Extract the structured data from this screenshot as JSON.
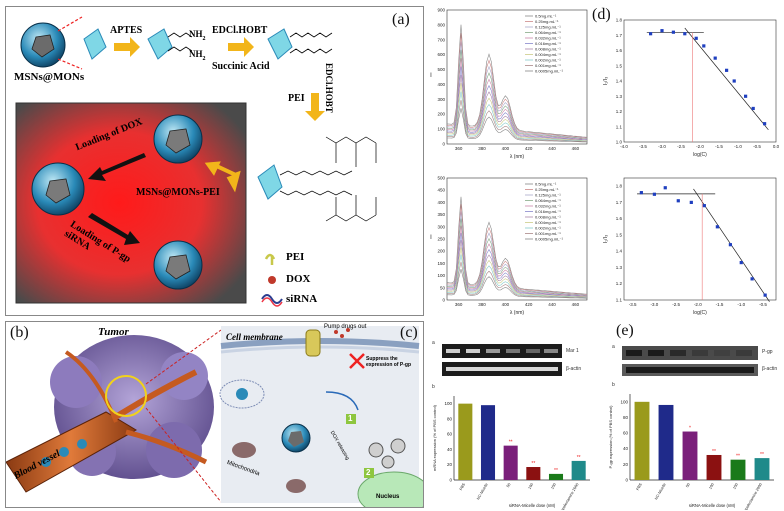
{
  "panel_a": {
    "label": "(a)",
    "start_label": "MSNs@MONs",
    "step1": "APTES",
    "step2_top": "EDCl.HOBT",
    "step2_bottom": "Succinic Acid",
    "vertical_reagent": "EDCl.HOBT",
    "pei_step": "PEI",
    "nh2": "NH",
    "nh2_sub": "2",
    "loading_dox": "Loading of DOX",
    "loading_sirna": "Loading of P-gp siRNA",
    "product_label": "MSNs@MONs-PEI",
    "legend": [
      {
        "name": "PEI",
        "color": "#c8c84a"
      },
      {
        "name": "DOX",
        "color": "#c0392b"
      },
      {
        "name": "siRNA",
        "color": "#2c3e90"
      }
    ]
  },
  "panel_b": {
    "label": "(b)",
    "tumor": "Tumor",
    "vessel": "Blood vessel"
  },
  "panel_c": {
    "label": "(c)",
    "membrane": "Cell membrane",
    "pump": "Pump drugs out",
    "suppress": "Suppress the expression of P-gp",
    "mito": "Mitochondria",
    "dox_release": "DOX releasing",
    "nucleus": "Nucleus",
    "step1": "1",
    "step2": "2"
  },
  "panel_d": {
    "label": "(d)",
    "spectra": [
      {
        "ylabel": "I",
        "xlabel": "λ (nm)",
        "xticks": [
          "360",
          "380",
          "400",
          "420",
          "440",
          "460"
        ],
        "yticks": [
          "0",
          "100",
          "200",
          "300",
          "400",
          "500",
          "600",
          "700",
          "800",
          "900"
        ],
        "legend": [
          "0.5mg.mL⁻¹",
          "0.25mg.mL⁻¹",
          "0.125mg.mL⁻¹",
          "0.064mg.mL⁻¹",
          "0.032mg.mL⁻¹",
          "0.016mg.mL⁻¹",
          "0.008mg.mL⁻¹",
          "0.004mg.mL⁻¹",
          "0.002mg.mL⁻¹",
          "0.001mg.mL⁻¹",
          "0.0005mg.mL⁻¹"
        ]
      },
      {
        "ylabel": "I",
        "xlabel": "λ (nm)",
        "xticks": [
          "360",
          "380",
          "400",
          "420",
          "440",
          "460"
        ],
        "yticks": [
          "0",
          "50",
          "100",
          "150",
          "200",
          "250",
          "300",
          "350",
          "400",
          "450",
          "500"
        ],
        "legend": [
          "0.5mg.mL⁻¹",
          "0.25mg.mL⁻¹",
          "0.125mg.mL⁻¹",
          "0.064mg.mL⁻¹",
          "0.032mg.mL⁻¹",
          "0.016mg.mL⁻¹",
          "0.008mg.mL⁻¹",
          "0.004mg.mL⁻¹",
          "0.002mg.mL⁻¹",
          "0.001mg.mL⁻¹",
          "0.0005mg.mL⁻¹"
        ]
      }
    ],
    "ratio_plots": [
      {
        "ylabel": "I₁/I₃",
        "xlabel": "log(C)",
        "xticks": [
          "-4.0",
          "-3.5",
          "-3.0",
          "-2.5",
          "-2.0",
          "-1.5",
          "-1.0",
          "-0.5",
          "0.0"
        ],
        "yticks": [
          "1.0",
          "1.1",
          "1.2",
          "1.3",
          "1.4",
          "1.5",
          "1.6",
          "1.7",
          "1.8"
        ],
        "points": [
          [
            -3.3,
            1.71
          ],
          [
            -3.0,
            1.73
          ],
          [
            -2.7,
            1.72
          ],
          [
            -2.4,
            1.71
          ],
          [
            -2.1,
            1.68
          ],
          [
            -1.9,
            1.63
          ],
          [
            -1.6,
            1.55
          ],
          [
            -1.3,
            1.47
          ],
          [
            -1.1,
            1.4
          ],
          [
            -0.8,
            1.3
          ],
          [
            -0.6,
            1.22
          ],
          [
            -0.3,
            1.12
          ]
        ]
      },
      {
        "ylabel": "I₁/I₃",
        "xlabel": "log(C)",
        "xticks": [
          "-3.5",
          "-3.0",
          "-2.5",
          "-2.0",
          "-1.5",
          "-1.0",
          "-0.5"
        ],
        "yticks": [
          "1.1",
          "1.2",
          "1.3",
          "1.4",
          "1.5",
          "1.6",
          "1.7",
          "1.8"
        ],
        "points": [
          [
            -3.3,
            1.76
          ],
          [
            -3.0,
            1.75
          ],
          [
            -2.75,
            1.79
          ],
          [
            -2.45,
            1.71
          ],
          [
            -2.15,
            1.7
          ],
          [
            -1.85,
            1.68
          ],
          [
            -1.55,
            1.55
          ],
          [
            -1.25,
            1.44
          ],
          [
            -1.0,
            1.33
          ],
          [
            -0.75,
            1.23
          ],
          [
            -0.45,
            1.13
          ]
        ]
      }
    ]
  },
  "panel_e": {
    "label": "(e)",
    "blot_left": {
      "a": "a",
      "b": "b",
      "band1": "Mar 1",
      "band2": "β-actin"
    },
    "blot_right": {
      "a": "a",
      "b": "b",
      "band1": "P-gp",
      "band2": "β-actin"
    },
    "bar_left": {
      "ylabel": "mRNA expression (% of PBS control)",
      "xlabel": "siRNA-Micelle dose (nM)",
      "yticks": [
        "0",
        "20",
        "40",
        "60",
        "80",
        "100"
      ],
      "categories": [
        "PBS",
        "NC-Micelle",
        "50",
        "100",
        "150",
        "siRNA/ Lipofectamine 2000"
      ],
      "values": [
        100,
        98,
        45,
        17,
        8,
        25
      ],
      "colors": [
        "#9a9a1c",
        "#1f2a8a",
        "#7a1f7a",
        "#8b1111",
        "#1a7a1a",
        "#1f8a8a"
      ],
      "stars": [
        "",
        "",
        "**",
        "**",
        "**",
        "**"
      ]
    },
    "bar_right": {
      "ylabel": "P-gp expression (% of PBS control)",
      "xlabel": "siRNA-Micelle dose (nM)",
      "yticks": [
        "0",
        "20",
        "40",
        "60",
        "80",
        "100"
      ],
      "categories": [
        "PBS",
        "NC-Micelle",
        "50",
        "100",
        "150",
        "siRNA/ Lipofectamine 2000"
      ],
      "values": [
        100,
        96,
        62,
        32,
        26,
        28
      ],
      "colors": [
        "#9a9a1c",
        "#1f2a8a",
        "#7a1f7a",
        "#8b1111",
        "#1a7a1a",
        "#1f8a8a"
      ],
      "stars": [
        "",
        "",
        "*",
        "**",
        "**",
        "**"
      ]
    }
  }
}
